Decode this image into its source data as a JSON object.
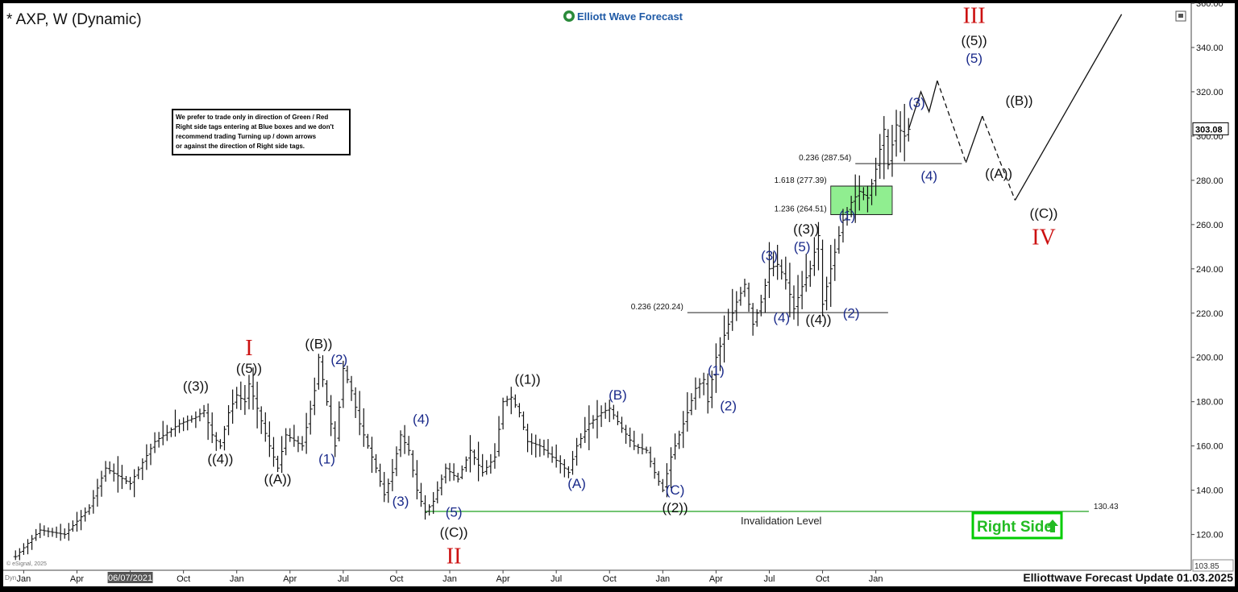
{
  "header": {
    "symbol_title": "* AXP, W (Dynamic)",
    "brand": "Elliott Wave Forecast",
    "footer_title": "Elliottwave Forecast Update 01.03.2025",
    "vendor": "© eSignal, 2025",
    "panel_label": "Dyn"
  },
  "note": {
    "lines": [
      "We prefer to trade only in direction of Green / Red",
      "Right side tags entering at Blue boxes and we don't",
      "recommend trading Turning up / down arrows",
      "or against the direction of Right side tags."
    ]
  },
  "right_side_tag": {
    "label": "Right Side",
    "color": "#00cc00"
  },
  "colors": {
    "zone_fill": "#90ee90",
    "invalidation": "#33aa33",
    "wave_blue": "#1a2a8a",
    "degree_red": "#cc1111"
  },
  "chart_data": {
    "type": "candlestick",
    "title": "* AXP, W (Dynamic)",
    "ylim": [
      103.85,
      360
    ],
    "y_ticks": [
      120,
      140,
      160,
      180,
      200,
      220,
      240,
      260,
      280,
      300,
      320,
      340,
      360
    ],
    "y_tick_labels": [
      "120.00",
      "140.00",
      "160.00",
      "180.00",
      "200.00",
      "220.00",
      "240.00",
      "260.00",
      "280.00",
      "300.00",
      "320.00",
      "340.00",
      "360.00"
    ],
    "x_tick_labels": [
      "Jan",
      "Apr",
      "06/07/2021",
      "Oct",
      "Jan",
      "Apr",
      "Jul",
      "Oct",
      "Jan",
      "Apr",
      "Jul",
      "Oct",
      "Jan",
      "Apr",
      "Jul",
      "Oct",
      "Jan"
    ],
    "x_tick_weeks": [
      2,
      15,
      28,
      41,
      54,
      67,
      80,
      93,
      106,
      119,
      132,
      145,
      158,
      171,
      184,
      197,
      210
    ],
    "x_axis": {
      "unit": "weeks",
      "range": [
        -3,
        287
      ]
    },
    "last_price": 303.08,
    "last_price_label": "303.08",
    "axis_low_label": "103.85",
    "price_path": [
      [
        0,
        110
      ],
      [
        6,
        122
      ],
      [
        12,
        120
      ],
      [
        18,
        132
      ],
      [
        22,
        150
      ],
      [
        28,
        143
      ],
      [
        34,
        162
      ],
      [
        40,
        170
      ],
      [
        44,
        173
      ],
      [
        46,
        176
      ],
      [
        48,
        165
      ],
      [
        50,
        160
      ],
      [
        52,
        175
      ],
      [
        54,
        183
      ],
      [
        56,
        180
      ],
      [
        57,
        188
      ],
      [
        59,
        177
      ],
      [
        62,
        160
      ],
      [
        64,
        150
      ],
      [
        66,
        165
      ],
      [
        70,
        160
      ],
      [
        73,
        185
      ],
      [
        74,
        200
      ],
      [
        76,
        180
      ],
      [
        78,
        160
      ],
      [
        80,
        195
      ],
      [
        82,
        185
      ],
      [
        84,
        170
      ],
      [
        86,
        160
      ],
      [
        88,
        150
      ],
      [
        90,
        138
      ],
      [
        92,
        148
      ],
      [
        94,
        165
      ],
      [
        96,
        158
      ],
      [
        98,
        140
      ],
      [
        100,
        130
      ],
      [
        102,
        135
      ],
      [
        105,
        150
      ],
      [
        108,
        145
      ],
      [
        111,
        158
      ],
      [
        114,
        148
      ],
      [
        117,
        155
      ],
      [
        119,
        180
      ],
      [
        121,
        182
      ],
      [
        123,
        175
      ],
      [
        125,
        162
      ],
      [
        128,
        160
      ],
      [
        131,
        155
      ],
      [
        133,
        152
      ],
      [
        135,
        148
      ],
      [
        137,
        160
      ],
      [
        140,
        170
      ],
      [
        143,
        175
      ],
      [
        145,
        177
      ],
      [
        148,
        168
      ],
      [
        151,
        160
      ],
      [
        154,
        158
      ],
      [
        156,
        148
      ],
      [
        158,
        140
      ],
      [
        160,
        155
      ],
      [
        162,
        165
      ],
      [
        164,
        175
      ],
      [
        166,
        186
      ],
      [
        168,
        190
      ],
      [
        169,
        180
      ],
      [
        171,
        200
      ],
      [
        173,
        210
      ],
      [
        176,
        225
      ],
      [
        178,
        233
      ],
      [
        180,
        215
      ],
      [
        182,
        225
      ],
      [
        184,
        240
      ],
      [
        186,
        242
      ],
      [
        188,
        235
      ],
      [
        190,
        222
      ],
      [
        192,
        232
      ],
      [
        194,
        240
      ],
      [
        196,
        255
      ],
      [
        197,
        224
      ],
      [
        199,
        240
      ],
      [
        201,
        255
      ],
      [
        202,
        262
      ],
      [
        204,
        270
      ],
      [
        206,
        275
      ],
      [
        208,
        272
      ],
      [
        210,
        285
      ],
      [
        212,
        303
      ],
      [
        213,
        287
      ],
      [
        215,
        305
      ],
      [
        217,
        300
      ],
      [
        218,
        303
      ]
    ],
    "price_labels": [
      {
        "label": "0.236 (287.54)",
        "value": 287.54,
        "x_from": 205,
        "x_to": 231
      },
      {
        "label": "1.618 (277.39)",
        "value": 277.39,
        "x_from": 199,
        "x_to": 214
      },
      {
        "label": "1.236 (264.51)",
        "value": 264.51,
        "x_from": 199,
        "x_to": 214
      },
      {
        "label": "0.236 (220.24)",
        "value": 220.24,
        "x_from": 164,
        "x_to": 213
      }
    ],
    "target_zone": {
      "low": 264.51,
      "high": 277.39,
      "x_from": 199,
      "x_to": 214
    },
    "invalidation": {
      "label": "Invalidation Level",
      "value": 130.43,
      "value_label": "130.43",
      "x_from": 100,
      "x_to": 262
    },
    "projection": {
      "solid_1": [
        [
          218,
          303
        ],
        [
          221,
          320
        ],
        [
          223,
          311
        ],
        [
          225,
          325
        ]
      ],
      "dashed_1": [
        [
          225,
          325
        ],
        [
          232,
          288
        ]
      ],
      "solid_2": [
        [
          232,
          288
        ],
        [
          236,
          309
        ]
      ],
      "dashed_2": [
        [
          236,
          309
        ],
        [
          244,
          271
        ]
      ],
      "solid_3": [
        [
          244,
          271
        ],
        [
          270,
          355
        ]
      ]
    },
    "wave_labels": [
      {
        "text": "((3))",
        "x": 44,
        "y": 185,
        "color": "black"
      },
      {
        "text": "((4))",
        "x": 50,
        "y": 152,
        "color": "black"
      },
      {
        "text": "((5))",
        "x": 57,
        "y": 193,
        "color": "black"
      },
      {
        "text": "I",
        "x": 57,
        "y": 201,
        "color": "red"
      },
      {
        "text": "((A))",
        "x": 64,
        "y": 143,
        "color": "black"
      },
      {
        "text": "((B))",
        "x": 74,
        "y": 204,
        "color": "black"
      },
      {
        "text": "(2)",
        "x": 79,
        "y": 197,
        "color": "blue"
      },
      {
        "text": "(1)",
        "x": 76,
        "y": 152,
        "color": "blue"
      },
      {
        "text": "(3)",
        "x": 94,
        "y": 133,
        "color": "blue"
      },
      {
        "text": "(4)",
        "x": 99,
        "y": 170,
        "color": "blue"
      },
      {
        "text": "(5)",
        "x": 107,
        "y": 128,
        "color": "blue"
      },
      {
        "text": "((C))",
        "x": 107,
        "y": 119,
        "color": "black"
      },
      {
        "text": "II",
        "x": 107,
        "y": 107,
        "color": "red"
      },
      {
        "text": "((1))",
        "x": 125,
        "y": 188,
        "color": "black"
      },
      {
        "text": "(A)",
        "x": 137,
        "y": 141,
        "color": "blue"
      },
      {
        "text": "(B)",
        "x": 147,
        "y": 181,
        "color": "blue"
      },
      {
        "text": "(C)",
        "x": 161,
        "y": 138,
        "color": "blue"
      },
      {
        "text": "((2))",
        "x": 161,
        "y": 130,
        "color": "black"
      },
      {
        "text": "(1)",
        "x": 171,
        "y": 192,
        "color": "blue"
      },
      {
        "text": "(2)",
        "x": 174,
        "y": 176,
        "color": "blue"
      },
      {
        "text": "(3)",
        "x": 184,
        "y": 244,
        "color": "blue"
      },
      {
        "text": "(4)",
        "x": 187,
        "y": 216,
        "color": "blue"
      },
      {
        "text": "((3))",
        "x": 193,
        "y": 256,
        "color": "black"
      },
      {
        "text": "(5)",
        "x": 192,
        "y": 248,
        "color": "blue"
      },
      {
        "text": "((4))",
        "x": 196,
        "y": 215,
        "color": "black"
      },
      {
        "text": "(1)",
        "x": 203,
        "y": 262,
        "color": "blue"
      },
      {
        "text": "(2)",
        "x": 204,
        "y": 218,
        "color": "blue"
      },
      {
        "text": "(3)",
        "x": 220,
        "y": 313,
        "color": "blue"
      },
      {
        "text": "(4)",
        "x": 223,
        "y": 280,
        "color": "blue"
      },
      {
        "text": "((5))",
        "x": 234,
        "y": 341,
        "color": "black"
      },
      {
        "text": "(5)",
        "x": 234,
        "y": 333,
        "color": "blue"
      },
      {
        "text": "III",
        "x": 234,
        "y": 351,
        "color": "red"
      },
      {
        "text": "((A))",
        "x": 240,
        "y": 281,
        "color": "black"
      },
      {
        "text": "((B))",
        "x": 245,
        "y": 314,
        "color": "black"
      },
      {
        "text": "((C))",
        "x": 251,
        "y": 263,
        "color": "black"
      },
      {
        "text": "IV",
        "x": 251,
        "y": 251,
        "color": "red"
      }
    ]
  }
}
